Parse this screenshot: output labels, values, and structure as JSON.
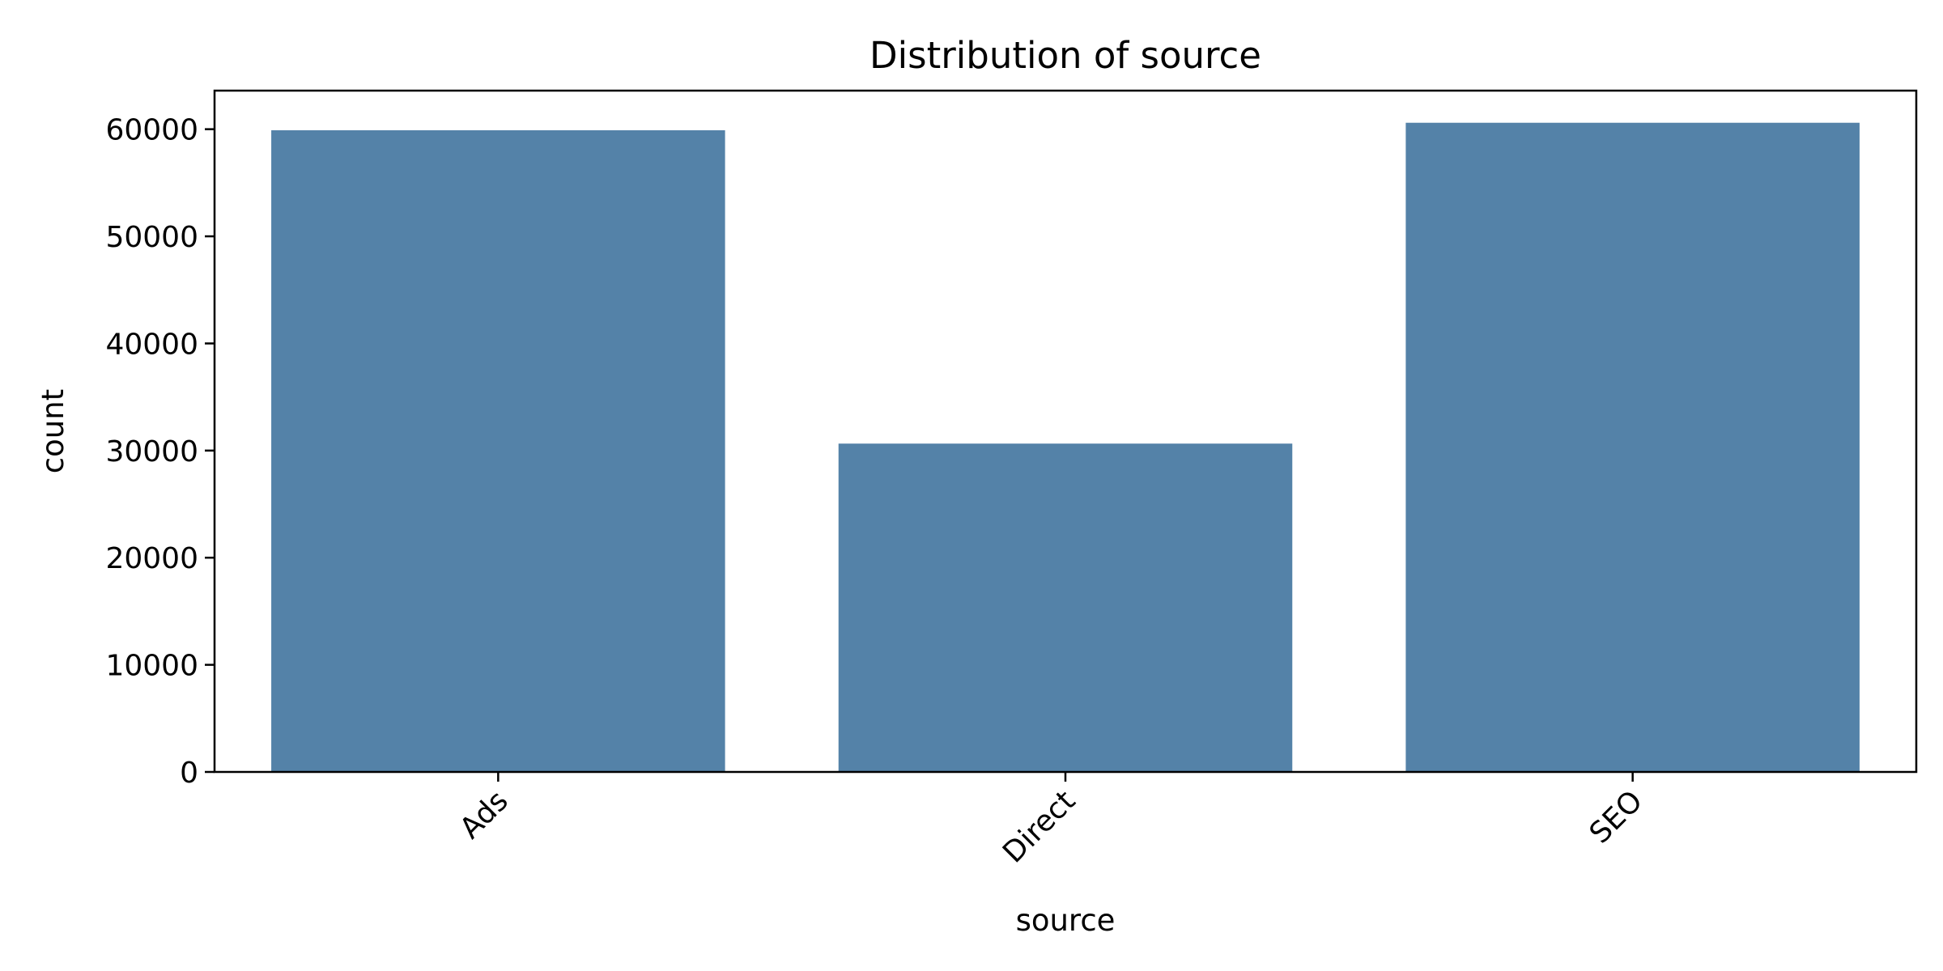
{
  "chart_data": {
    "type": "bar",
    "title": "Distribution of source",
    "xlabel": "source",
    "ylabel": "count",
    "categories": [
      "Ads",
      "Direct",
      "SEO"
    ],
    "values": [
      59900,
      30650,
      60600
    ],
    "ylim": [
      0,
      63600
    ],
    "yticks": [
      0,
      10000,
      20000,
      30000,
      40000,
      50000,
      60000
    ],
    "bar_color": "#5482a8",
    "grid": false,
    "legend": "none",
    "xtick_rotation_deg": 45
  }
}
